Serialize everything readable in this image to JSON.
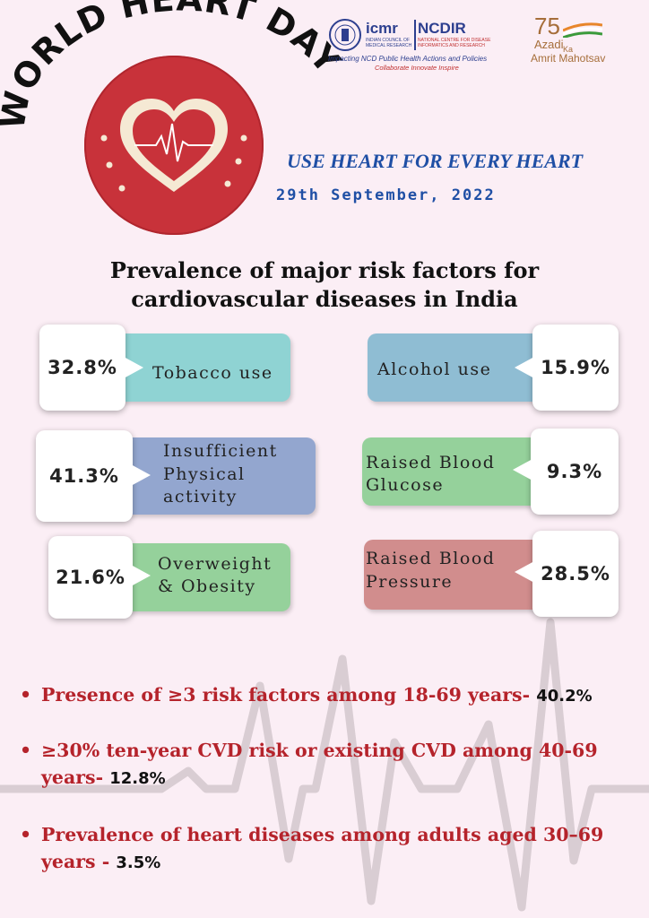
{
  "header": {
    "title": "WORLD HEART DAY",
    "tagline": "USE HEART FOR EVERY HEART",
    "date": "29th September, 2022"
  },
  "logos": {
    "icmr": "icmr",
    "icmr_sub": "INDIAN COUNCIL OF MEDICAL RESEARCH",
    "ncdir": "NCDIR",
    "ncdir_sub": "NATIONAL CENTRE FOR DISEASE INFORMATICS AND RESEARCH",
    "impact": "Impacting NCD Public Health Actions and Policies",
    "collab": "Collaborate  Innovate  Inspire",
    "azadi_num": "75",
    "azadi": "Azadi",
    "ka": "Ka",
    "amrit": "Amrit Mahotsav"
  },
  "heading": {
    "line1": "Prevalence of major risk factors for",
    "line2": "cardiovascular diseases in India"
  },
  "risk_factors": {
    "tobacco": {
      "label": "Tobacco use",
      "value": "32.8%",
      "color": "#8fd3d3"
    },
    "alcohol": {
      "label": "Alcohol use",
      "value": "15.9%",
      "color": "#8fbdd3"
    },
    "physical": {
      "label1": "Insufficient",
      "label2": "Physical",
      "label3": "activity",
      "value": "41.3%",
      "color": "#93a6cf"
    },
    "glucose": {
      "label1": "Raised  Blood",
      "label2": "Glucose",
      "value": "9.3%",
      "color": "#95d19b"
    },
    "obesity": {
      "label1": "Overweight",
      "label2": "& Obesity",
      "value": "21.6%",
      "color": "#95d19b"
    },
    "pressure": {
      "label1": "Raised  Blood",
      "label2": "Pressure",
      "value": "28.5%",
      "color": "#d18d8d"
    }
  },
  "bullets": [
    {
      "text": "Presence of ≥3 risk factors among 18-69 years- ",
      "value": "40.2%"
    },
    {
      "text": "≥30% ten-year CVD risk or existing CVD among 40-69 years- ",
      "value": "12.8%"
    },
    {
      "text": "Prevalence of heart diseases among adults aged 30–69 years - ",
      "value": "3.5%"
    }
  ],
  "bullet_symbol": "•"
}
